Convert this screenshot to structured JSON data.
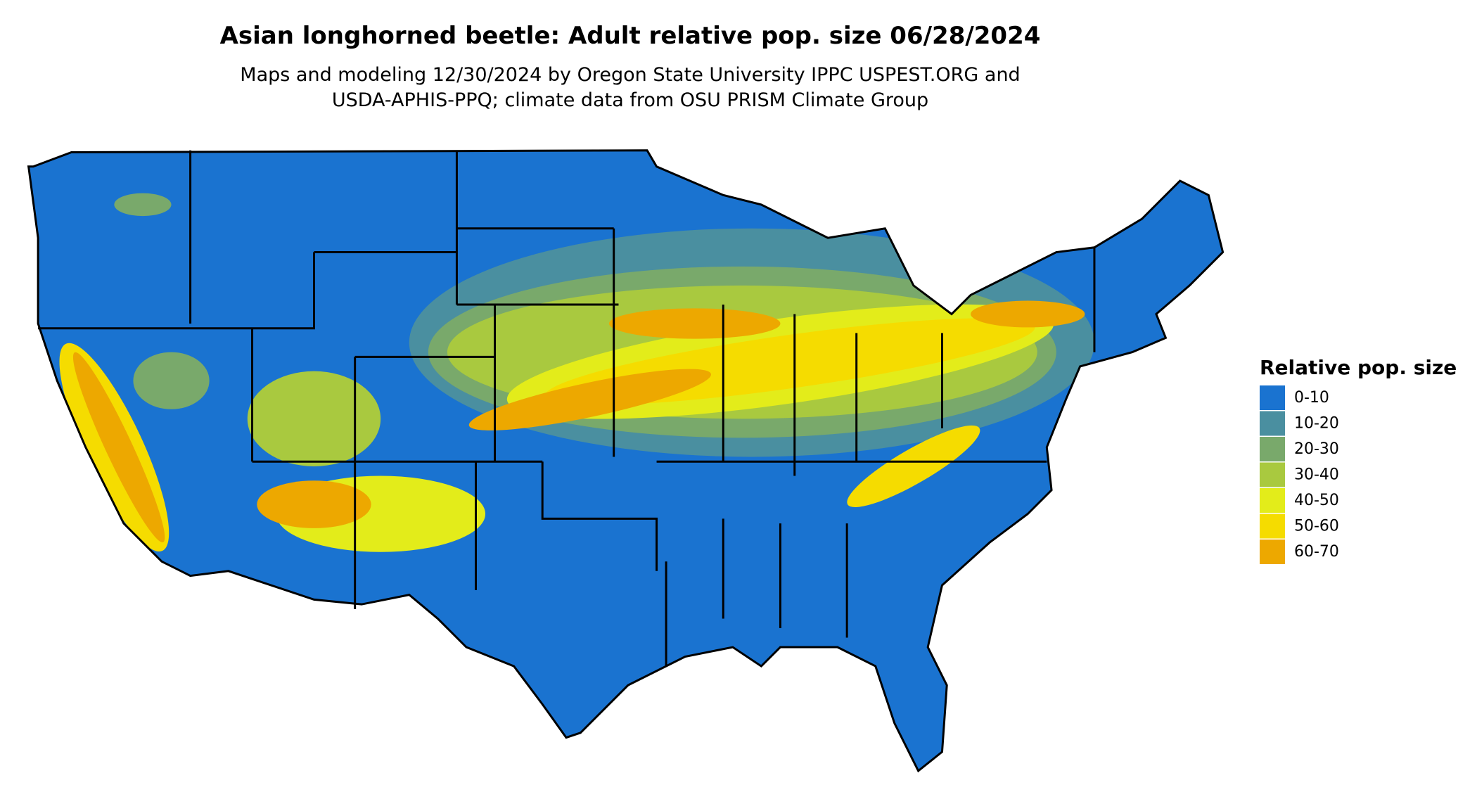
{
  "header": {
    "title": "Asian longhorned beetle: Adult relative pop. size 06/28/2024",
    "subtitle": [
      "Maps and modeling 12/30/2024 by Oregon State University IPPC USPEST.ORG and",
      "USDA-APHIS-PPQ; climate data from OSU PRISM Climate Group"
    ]
  },
  "legend": {
    "title": "Relative pop. size",
    "items": [
      {
        "label": "0-10",
        "color": "#1a73d0"
      },
      {
        "label": "10-20",
        "color": "#4a8fa0"
      },
      {
        "label": "20-30",
        "color": "#79a96b"
      },
      {
        "label": "30-40",
        "color": "#a9c93f"
      },
      {
        "label": "40-50",
        "color": "#e3ec1a"
      },
      {
        "label": "50-60",
        "color": "#f5dc00"
      },
      {
        "label": "60-70",
        "color": "#eda800"
      }
    ]
  }
}
